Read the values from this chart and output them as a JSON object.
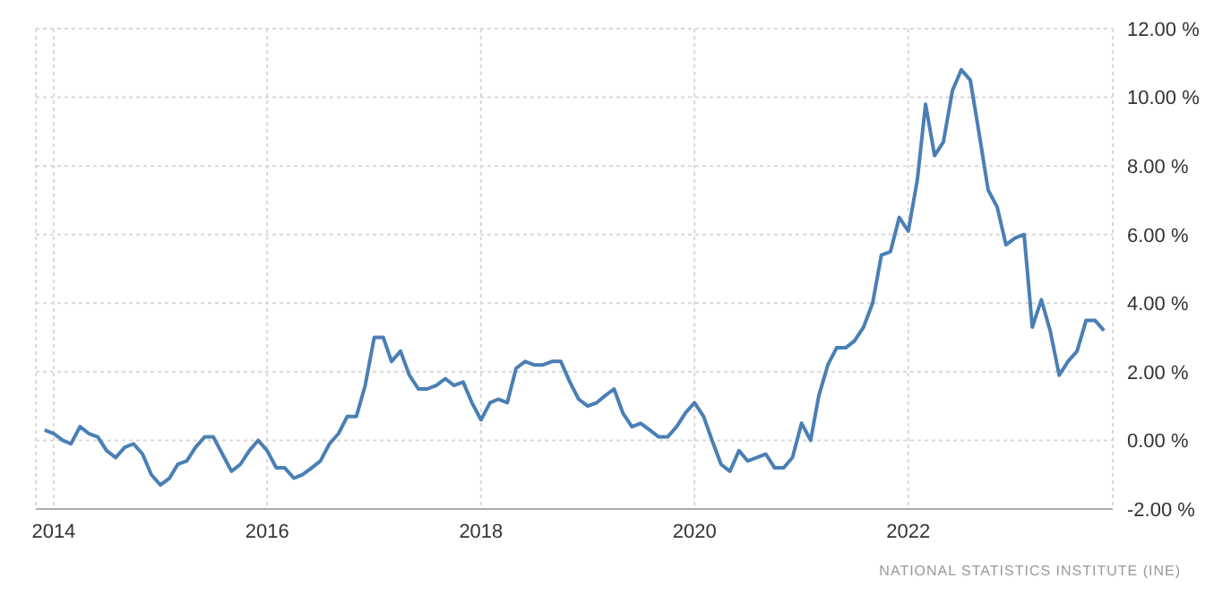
{
  "chart_data": {
    "type": "line",
    "x": [
      "2013-12",
      "2014-01",
      "2014-02",
      "2014-03",
      "2014-04",
      "2014-05",
      "2014-06",
      "2014-07",
      "2014-08",
      "2014-09",
      "2014-10",
      "2014-11",
      "2014-12",
      "2015-01",
      "2015-02",
      "2015-03",
      "2015-04",
      "2015-05",
      "2015-06",
      "2015-07",
      "2015-08",
      "2015-09",
      "2015-10",
      "2015-11",
      "2015-12",
      "2016-01",
      "2016-02",
      "2016-03",
      "2016-04",
      "2016-05",
      "2016-06",
      "2016-07",
      "2016-08",
      "2016-09",
      "2016-10",
      "2016-11",
      "2016-12",
      "2017-01",
      "2017-02",
      "2017-03",
      "2017-04",
      "2017-05",
      "2017-06",
      "2017-07",
      "2017-08",
      "2017-09",
      "2017-10",
      "2017-11",
      "2017-12",
      "2018-01",
      "2018-02",
      "2018-03",
      "2018-04",
      "2018-05",
      "2018-06",
      "2018-07",
      "2018-08",
      "2018-09",
      "2018-10",
      "2018-11",
      "2018-12",
      "2019-01",
      "2019-02",
      "2019-03",
      "2019-04",
      "2019-05",
      "2019-06",
      "2019-07",
      "2019-08",
      "2019-09",
      "2019-10",
      "2019-11",
      "2019-12",
      "2020-01",
      "2020-02",
      "2020-03",
      "2020-04",
      "2020-05",
      "2020-06",
      "2020-07",
      "2020-08",
      "2020-09",
      "2020-10",
      "2020-11",
      "2020-12",
      "2021-01",
      "2021-02",
      "2021-03",
      "2021-04",
      "2021-05",
      "2021-06",
      "2021-07",
      "2021-08",
      "2021-09",
      "2021-10",
      "2021-11",
      "2021-12",
      "2022-01",
      "2022-02",
      "2022-03",
      "2022-04",
      "2022-05",
      "2022-06",
      "2022-07",
      "2022-08",
      "2022-09",
      "2022-10",
      "2022-11",
      "2022-12",
      "2023-01",
      "2023-02",
      "2023-03",
      "2023-04",
      "2023-05",
      "2023-06",
      "2023-07",
      "2023-08",
      "2023-09",
      "2023-10",
      "2023-11"
    ],
    "series": [
      {
        "color": "#4a7fb5",
        "values": [
          0.3,
          0.2,
          0.0,
          -0.1,
          0.4,
          0.2,
          0.1,
          -0.3,
          -0.5,
          -0.2,
          -0.1,
          -0.4,
          -1.0,
          -1.3,
          -1.1,
          -0.7,
          -0.6,
          -0.2,
          0.1,
          0.1,
          -0.4,
          -0.9,
          -0.7,
          -0.3,
          0.0,
          -0.3,
          -0.8,
          -0.8,
          -1.1,
          -1.0,
          -0.8,
          -0.6,
          -0.1,
          0.2,
          0.7,
          0.7,
          1.6,
          3.0,
          3.0,
          2.3,
          2.6,
          1.9,
          1.5,
          1.5,
          1.6,
          1.8,
          1.6,
          1.7,
          1.1,
          0.6,
          1.1,
          1.2,
          1.1,
          2.1,
          2.3,
          2.2,
          2.2,
          2.3,
          2.3,
          1.7,
          1.2,
          1.0,
          1.1,
          1.3,
          1.5,
          0.8,
          0.4,
          0.5,
          0.3,
          0.1,
          0.1,
          0.4,
          0.8,
          1.1,
          0.7,
          0.0,
          -0.7,
          -0.9,
          -0.3,
          -0.6,
          -0.5,
          -0.4,
          -0.8,
          -0.8,
          -0.5,
          0.5,
          0.0,
          1.3,
          2.2,
          2.7,
          2.7,
          2.9,
          3.3,
          4.0,
          5.4,
          5.5,
          6.5,
          6.1,
          7.6,
          9.8,
          8.3,
          8.7,
          10.2,
          10.8,
          10.5,
          8.9,
          7.3,
          6.8,
          5.7,
          5.9,
          6.0,
          3.3,
          4.1,
          3.2,
          1.9,
          2.3,
          2.6,
          3.5,
          3.5,
          3.2
        ]
      }
    ],
    "xlim": [
      "2013-11",
      "2023-12"
    ],
    "xticks": [
      "2014",
      "2016",
      "2018",
      "2020",
      "2022"
    ],
    "ylim": [
      -2,
      12
    ],
    "yticks": [
      {
        "value": -2,
        "label": "-2.00 %"
      },
      {
        "value": 0,
        "label": "0.00 %"
      },
      {
        "value": 2,
        "label": "2.00 %"
      },
      {
        "value": 4,
        "label": "4.00 %"
      },
      {
        "value": 6,
        "label": "6.00 %"
      },
      {
        "value": 8,
        "label": "8.00 %"
      },
      {
        "value": 10,
        "label": "10.00 %"
      },
      {
        "value": 12,
        "label": "12.00 %"
      }
    ],
    "grid": true,
    "marker": "none",
    "line_style": "solid",
    "annotations": [
      "NATIONAL STATISTICS INSTITUTE (INE)"
    ]
  }
}
